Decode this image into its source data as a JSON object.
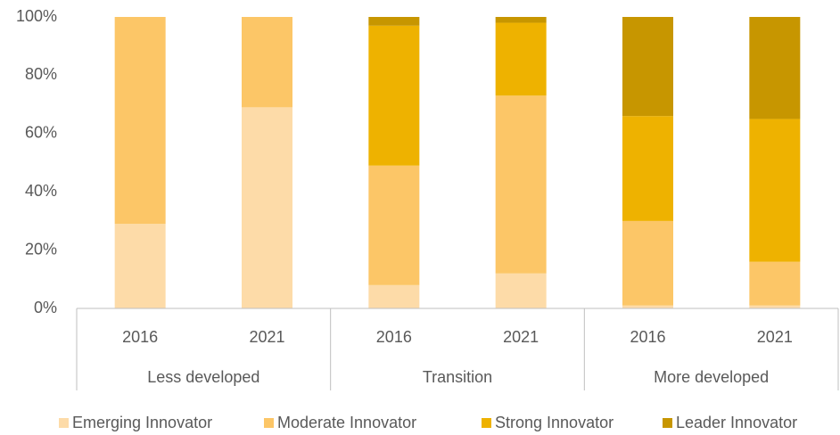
{
  "chart_data": {
    "type": "stacked_bar",
    "categories": [
      "2016",
      "2021",
      "2016",
      "2021",
      "2016",
      "2021"
    ],
    "groups": [
      "Less developed",
      "Transition",
      "More developed"
    ],
    "series": [
      {
        "name": "Emerging Innovator",
        "color": "#FDDBA8",
        "values": [
          29,
          69,
          8,
          12,
          1,
          1
        ]
      },
      {
        "name": "Moderate Innovator",
        "color": "#FCC667",
        "values": [
          71,
          31,
          41,
          61,
          29,
          15
        ]
      },
      {
        "name": "Strong Innovator",
        "color": "#EEB200",
        "values": [
          0,
          0,
          48,
          25,
          36,
          49
        ]
      },
      {
        "name": "Leader Innovator",
        "color": "#C79600",
        "values": [
          0,
          0,
          3,
          2,
          34,
          35
        ]
      }
    ],
    "ylim": [
      0,
      100
    ],
    "yticks": [
      {
        "value": 0,
        "label": "0%"
      },
      {
        "value": 20,
        "label": "20%"
      },
      {
        "value": 40,
        "label": "40%"
      },
      {
        "value": 60,
        "label": "60%"
      },
      {
        "value": 80,
        "label": "80%"
      },
      {
        "value": 100,
        "label": "100%"
      }
    ],
    "legend": "bottom"
  }
}
